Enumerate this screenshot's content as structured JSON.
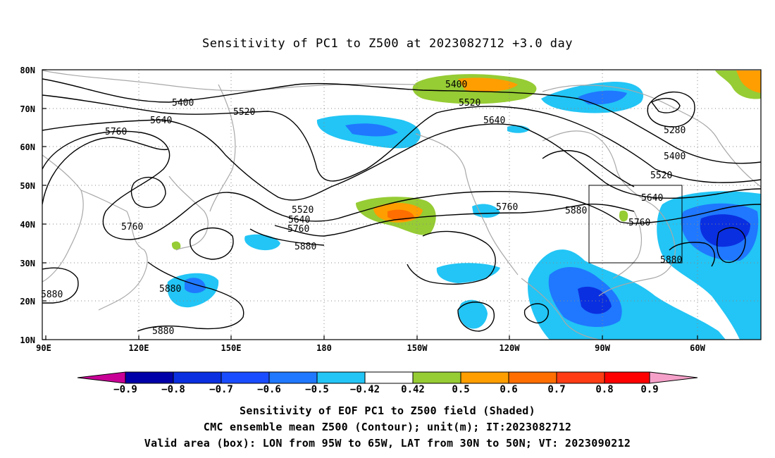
{
  "title": "Sensitivity of PC1 to Z500 at 2023082712 +3.0 day",
  "lat_labels": [
    "80N",
    "70N",
    "60N",
    "50N",
    "40N",
    "30N",
    "20N",
    "10N"
  ],
  "lon_labels": [
    "90E",
    "120E",
    "150E",
    "180",
    "150W",
    "120W",
    "90W",
    "60W"
  ],
  "contour_labels": [
    {
      "text": "5400"
    },
    {
      "text": "5520"
    },
    {
      "text": "5640"
    },
    {
      "text": "5760"
    },
    {
      "text": "5400"
    },
    {
      "text": "5520"
    },
    {
      "text": "5640"
    },
    {
      "text": "5280"
    },
    {
      "text": "5400"
    },
    {
      "text": "5520"
    },
    {
      "text": "5640"
    },
    {
      "text": "5760"
    },
    {
      "text": "5880"
    },
    {
      "text": "5520"
    },
    {
      "text": "5640"
    },
    {
      "text": "5760"
    },
    {
      "text": "5880"
    },
    {
      "text": "5760"
    },
    {
      "text": "5760"
    },
    {
      "text": "5880"
    },
    {
      "text": "5880"
    },
    {
      "text": "5880"
    },
    {
      "text": "5880"
    }
  ],
  "colorbar": {
    "labels": [
      "−0.9",
      "−0.8",
      "−0.7",
      "−0.6",
      "−0.5",
      "−0.42",
      "0.42",
      "0.5",
      "0.6",
      "0.7",
      "0.8",
      "0.9"
    ],
    "colors": [
      "#0000a8",
      "#0a2fe0",
      "#1a4cff",
      "#1f78ff",
      "#22c5f5",
      "#ffffff",
      "#96cc34",
      "#ff9e00",
      "#ff6e00",
      "#ff3c14",
      "#ff0000"
    ],
    "under_color": "#c80096",
    "over_color": "#f5a0c8"
  },
  "footer": [
    "Sensitivity of EOF PC1 to Z500 field (Shaded)",
    "CMC ensemble mean Z500 (Contour); unit(m); IT:2023082712",
    "Valid area (box): LON from 95W to 65W, LAT from 30N to 50N; VT: 2023090212"
  ]
}
